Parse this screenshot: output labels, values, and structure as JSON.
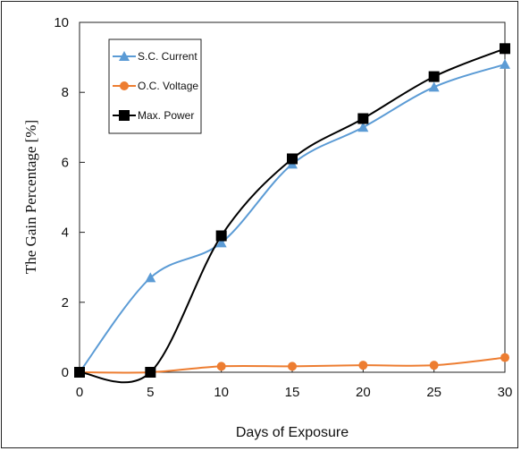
{
  "chart_data": {
    "type": "line",
    "title": "",
    "xlabel": "Days of Exposure",
    "ylabel": "The Gain Percentage [%]",
    "xlim": [
      0,
      30
    ],
    "ylim": [
      0,
      10
    ],
    "x_ticks": [
      0,
      5,
      10,
      15,
      20,
      25,
      30
    ],
    "y_ticks": [
      0,
      2,
      4,
      6,
      8,
      10
    ],
    "grid": false,
    "legend_position": "top-left",
    "x": [
      0,
      5,
      10,
      15,
      20,
      25,
      30
    ],
    "series": [
      {
        "name": "S.C. Current",
        "values": [
          0,
          2.7,
          3.7,
          5.95,
          7.0,
          8.15,
          8.8
        ],
        "color": "#5b9bd5",
        "marker": "triangle"
      },
      {
        "name": "O.C. Voltage",
        "values": [
          0,
          0,
          0.17,
          0.17,
          0.2,
          0.2,
          0.42
        ],
        "color": "#ed7d31",
        "marker": "circle"
      },
      {
        "name": "Max. Power",
        "values": [
          0,
          0,
          3.9,
          6.1,
          7.25,
          8.45,
          9.25
        ],
        "color": "#000000",
        "marker": "square"
      }
    ]
  }
}
